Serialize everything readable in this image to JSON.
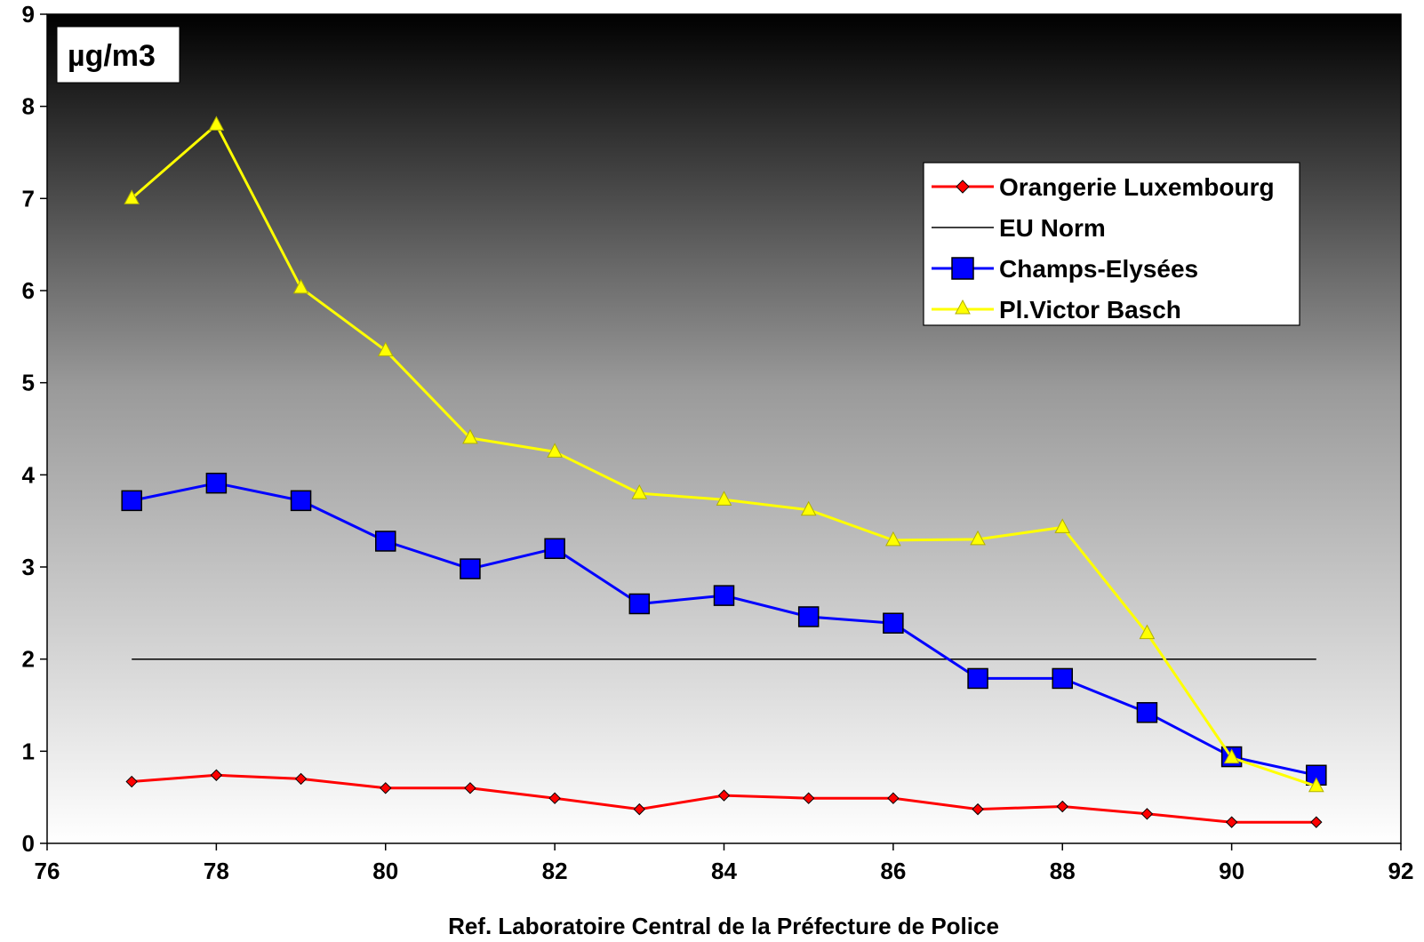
{
  "chart_data": {
    "type": "line",
    "unit_label": "µg/m3",
    "xlabel": "Ref. Laboratoire Central de la Préfecture de Police",
    "ylabel": "",
    "xlim": [
      76,
      92
    ],
    "ylim": [
      0,
      9
    ],
    "x_ticks": [
      76,
      78,
      80,
      82,
      84,
      86,
      88,
      90,
      92
    ],
    "y_ticks": [
      0,
      1,
      2,
      3,
      4,
      5,
      6,
      7,
      8,
      9
    ],
    "legend_position": "upper-right",
    "background": "gradient black (top) to white (bottom)",
    "series": [
      {
        "name": "Orangerie Luxembourg",
        "color": "#ff0000",
        "marker": "diamond",
        "x": [
          77,
          78,
          79,
          80,
          81,
          82,
          83,
          84,
          85,
          86,
          87,
          88,
          89,
          90,
          91
        ],
        "y": [
          0.67,
          0.74,
          0.7,
          0.6,
          0.6,
          0.49,
          0.37,
          0.52,
          0.49,
          0.49,
          0.37,
          0.4,
          0.32,
          0.23,
          0.23
        ]
      },
      {
        "name": "EU Norm",
        "color": "#000000",
        "marker": "none",
        "x": [
          77,
          78,
          79,
          80,
          81,
          82,
          83,
          84,
          85,
          86,
          87,
          88,
          89,
          90,
          91
        ],
        "y": [
          2,
          2,
          2,
          2,
          2,
          2,
          2,
          2,
          2,
          2,
          2,
          2,
          2,
          2,
          2
        ]
      },
      {
        "name": "Champs-Elysées",
        "color": "#0000ff",
        "marker": "square",
        "x": [
          77,
          78,
          79,
          80,
          81,
          82,
          83,
          84,
          85,
          86,
          87,
          88,
          89,
          90,
          91
        ],
        "y": [
          3.72,
          3.91,
          3.72,
          3.28,
          2.98,
          3.2,
          2.6,
          2.69,
          2.46,
          2.39,
          1.79,
          1.79,
          1.42,
          0.94,
          0.74
        ]
      },
      {
        "name": "Pl.Victor Basch",
        "color": "#ffff00",
        "marker": "triangle",
        "x": [
          77,
          78,
          79,
          80,
          81,
          82,
          83,
          84,
          85,
          86,
          87,
          88,
          89,
          90,
          91
        ],
        "y": [
          7.0,
          7.8,
          6.03,
          5.35,
          4.4,
          4.25,
          3.8,
          3.73,
          3.62,
          3.29,
          3.3,
          3.43,
          2.28,
          0.93,
          0.62
        ]
      }
    ]
  }
}
